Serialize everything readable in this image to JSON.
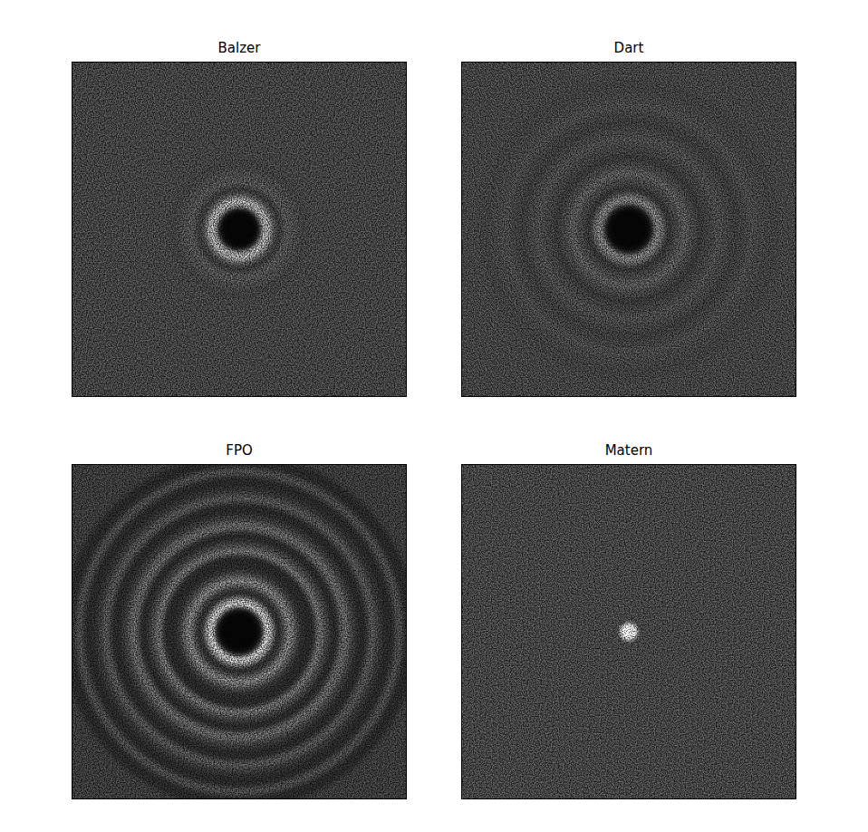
{
  "chart_data": [
    {
      "type": "radial_image",
      "title": "Balzer",
      "tick_labels": false,
      "x": [
        0.1,
        0.13,
        0.16,
        0.19,
        0.22,
        0.26,
        0.31,
        0.36,
        0.42,
        0.6,
        1.45
      ],
      "values": [
        0.02,
        0.05,
        0.55,
        0.6,
        0.3,
        0.2,
        0.3,
        0.27,
        0.24,
        0.25,
        0.25
      ]
    },
    {
      "type": "radial_image",
      "title": "Dart",
      "tick_labels": false,
      "x": [
        0.12,
        0.15,
        0.19,
        0.22,
        0.26,
        0.31,
        0.36,
        0.41,
        0.45,
        0.51,
        0.56,
        0.61,
        0.66,
        0.71,
        0.76,
        0.82,
        0.9,
        1.45
      ],
      "values": [
        0.02,
        0.08,
        0.45,
        0.35,
        0.18,
        0.25,
        0.32,
        0.25,
        0.2,
        0.24,
        0.28,
        0.25,
        0.22,
        0.24,
        0.27,
        0.25,
        0.24,
        0.25
      ]
    },
    {
      "type": "radial_image",
      "title": "FPO",
      "tick_labels": false,
      "x": [
        0.12,
        0.15,
        0.18,
        0.21,
        0.25,
        0.28,
        0.32,
        0.35,
        0.38,
        0.46,
        0.5,
        0.54,
        0.6,
        0.66,
        0.7,
        0.77,
        0.82,
        0.86,
        0.93,
        0.98,
        1.06,
        1.45
      ],
      "values": [
        0.02,
        0.1,
        0.75,
        0.5,
        0.15,
        0.25,
        0.45,
        0.3,
        0.18,
        0.15,
        0.4,
        0.25,
        0.15,
        0.35,
        0.22,
        0.15,
        0.3,
        0.2,
        0.15,
        0.28,
        0.15,
        0.22
      ]
    },
    {
      "type": "radial_image",
      "title": "Matern",
      "tick_labels": false,
      "x": [
        0.045,
        0.05,
        0.07,
        0.1,
        1.45
      ],
      "values": [
        1,
        0.9,
        0.22,
        0.26,
        0.26
      ]
    }
  ]
}
